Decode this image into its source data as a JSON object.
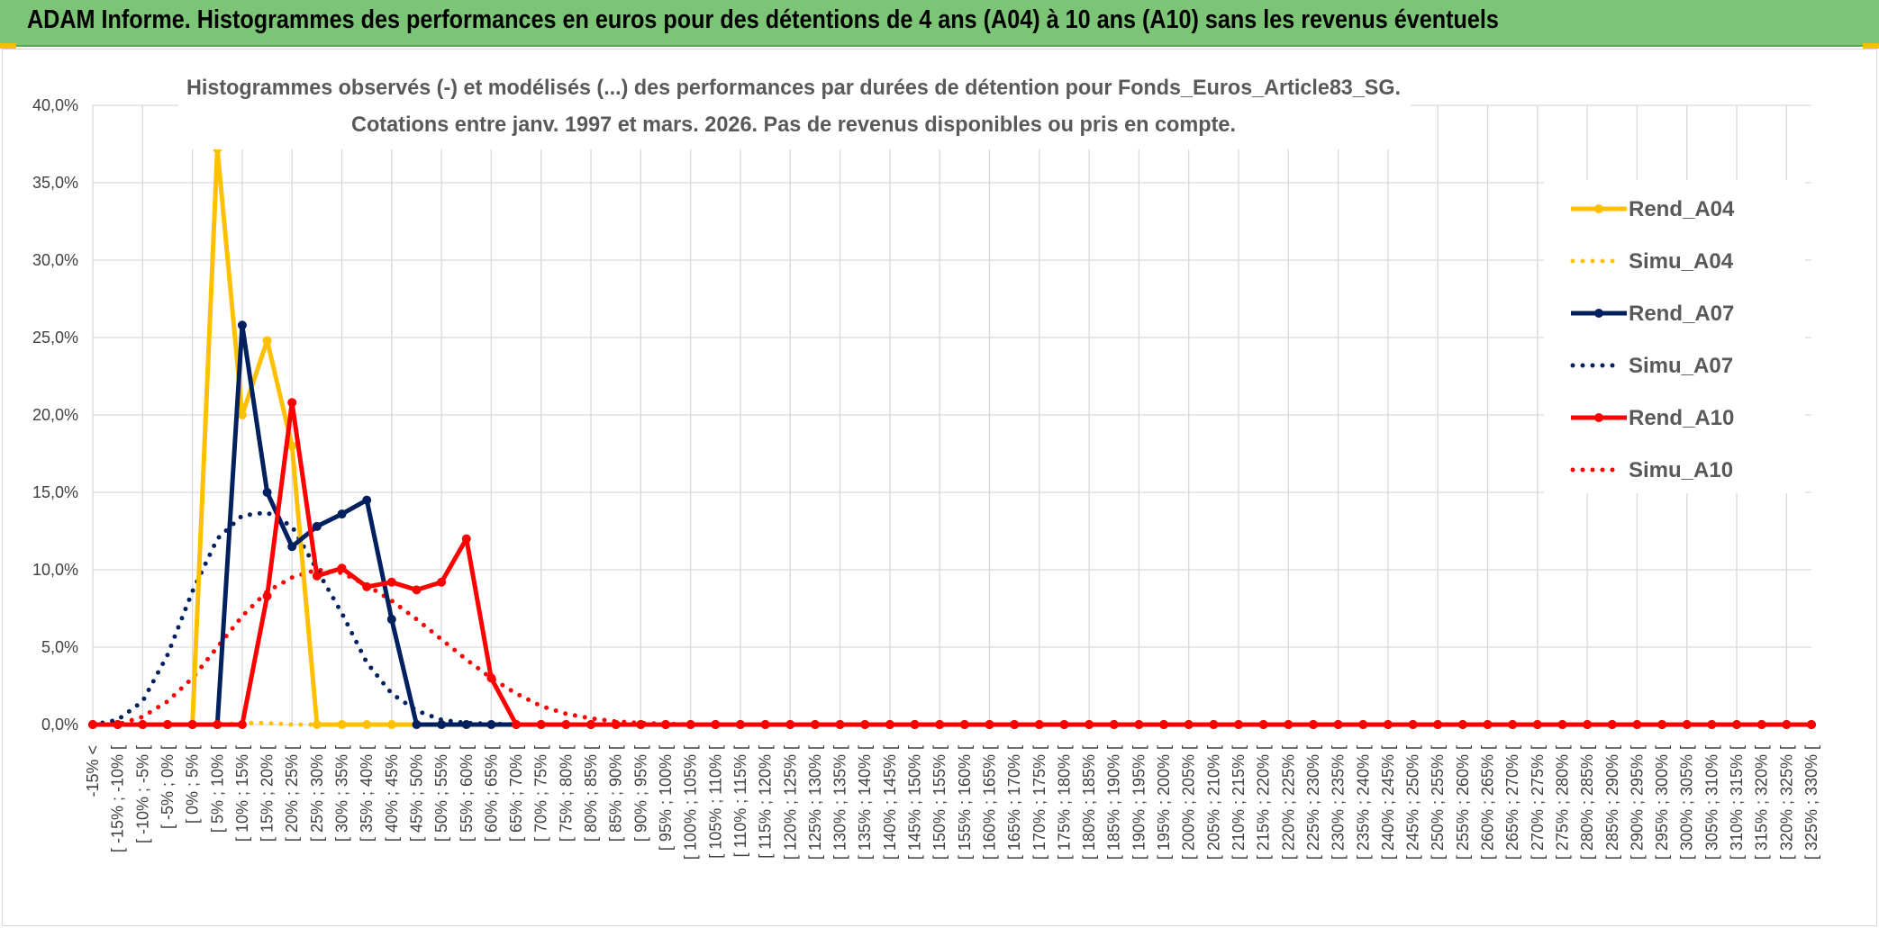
{
  "header": {
    "title": "ADAM Informe. Histogrammes des performances en euros pour des détentions de 4 ans (A04) à 10 ans (A10) sans les revenus éventuels"
  },
  "colors": {
    "banner": "#7cc576",
    "A04": "#ffc000",
    "A07": "#002060",
    "A10": "#ff0000",
    "grid": "#d9d9d9"
  },
  "chart_data": {
    "type": "line",
    "title": "Histogrammes observés (-) et modélisés (...) des performances par durées de détention pour Fonds_Euros_Article83_SG.",
    "subtitle": "Cotations entre janv. 1997 et mars. 2026. Pas de revenus disponibles ou pris en compte.",
    "xlabel": "",
    "ylabel": "",
    "ylim": [
      0,
      40
    ],
    "y_ticks": [
      "0,0%",
      "5,0%",
      "10,0%",
      "15,0%",
      "20,0%",
      "25,0%",
      "30,0%",
      "35,0%",
      "40,0%"
    ],
    "grid": true,
    "legend_position": "right",
    "categories": [
      "-15% <",
      "[ -15% ; -10% [",
      "[ -10% ; -5% [",
      "[ -5% ; 0% [",
      "[ 0% ; 5% [",
      "[ 5% ; 10% [",
      "[ 10% ; 15% [",
      "[ 15% ; 20% [",
      "[ 20% ; 25% [",
      "[ 25% ; 30% [",
      "[ 30% ; 35% [",
      "[ 35% ; 40% [",
      "[ 40% ; 45% [",
      "[ 45% ; 50% [",
      "[ 50% ; 55% [",
      "[ 55% ; 60% [",
      "[ 60% ; 65% [",
      "[ 65% ; 70% [",
      "[ 70% ; 75% [",
      "[ 75% ; 80% [",
      "[ 80% ; 85% [",
      "[ 85% ; 90% [",
      "[ 90% ; 95% [",
      "[ 95% ; 100% [",
      "[ 100% ; 105% [",
      "[ 105% ; 110% [",
      "[ 110% ; 115% [",
      "[ 115% ; 120% [",
      "[ 120% ; 125% [",
      "[ 125% ; 130% [",
      "[ 130% ; 135% [",
      "[ 135% ; 140% [",
      "[ 140% ; 145% [",
      "[ 145% ; 150% [",
      "[ 150% ; 155% [",
      "[ 155% ; 160% [",
      "[ 160% ; 165% [",
      "[ 165% ; 170% [",
      "[ 170% ; 175% [",
      "[ 175% ; 180% [",
      "[ 180% ; 185% [",
      "[ 185% ; 190% [",
      "[ 190% ; 195% [",
      "[ 195% ; 200% [",
      "[ 200% ; 205% [",
      "[ 205% ; 210% [",
      "[ 210% ; 215% [",
      "[ 215% ; 220% [",
      "[ 220% ; 225% [",
      "[ 225% ; 230% [",
      "[ 230% ; 235% [",
      "[ 235% ; 240% [",
      "[ 240% ; 245% [",
      "[ 245% ; 250% [",
      "[ 250% ; 255% [",
      "[ 255% ; 260% [",
      "[ 260% ; 265% [",
      "[ 265% ; 270% [",
      "[ 270% ; 275% [",
      "[ 275% ; 280% [",
      "[ 280% ; 285% [",
      "[ 285% ; 290% [",
      "[ 290% ; 295% [",
      "[ 295% ; 300% [",
      "[ 300% ; 305% [",
      "[ 305% ; 310% [",
      "[ 310% ; 315% [",
      "[ 315% ; 320% [",
      "[ 320% ; 325% [",
      "[ 325% ; 330% ["
    ],
    "series": [
      {
        "name": "Rend_A04",
        "style": "solid",
        "color": "#ffc000",
        "values": [
          0,
          0,
          0,
          0,
          0,
          37.2,
          20.0,
          24.8,
          18.0,
          0,
          0,
          0,
          0,
          0,
          0,
          0,
          0,
          0,
          0,
          0,
          0,
          0,
          0,
          0,
          0,
          0,
          0,
          0,
          0,
          0,
          0,
          0,
          0,
          0,
          0,
          0,
          0,
          0,
          0,
          0,
          0,
          0,
          0,
          0,
          0,
          0,
          0,
          0,
          0,
          0,
          0,
          0,
          0,
          0,
          0,
          0,
          0,
          0,
          0,
          0,
          0,
          0,
          0,
          0,
          0,
          0,
          0,
          0,
          0,
          0
        ]
      },
      {
        "name": "Simu_A04",
        "style": "dotted",
        "color": "#ffc000",
        "values": [
          0,
          0,
          0,
          0,
          0,
          0,
          0.1,
          0.1,
          0,
          0,
          0,
          0,
          0,
          0,
          0,
          0,
          0,
          0,
          0,
          0,
          0,
          0,
          0,
          0,
          0,
          0,
          0,
          0,
          0,
          0,
          0,
          0,
          0,
          0,
          0,
          0,
          0,
          0,
          0,
          0,
          0,
          0,
          0,
          0,
          0,
          0,
          0,
          0,
          0,
          0,
          0,
          0,
          0,
          0,
          0,
          0,
          0,
          0,
          0,
          0,
          0,
          0,
          0,
          0,
          0,
          0,
          0,
          0,
          0,
          0
        ]
      },
      {
        "name": "Rend_A07",
        "style": "solid",
        "color": "#002060",
        "values": [
          0,
          0,
          0,
          0,
          0,
          0,
          25.8,
          15.0,
          11.5,
          12.8,
          13.6,
          14.5,
          6.8,
          0,
          0,
          0,
          0,
          0,
          0,
          0,
          0,
          0,
          0,
          0,
          0,
          0,
          0,
          0,
          0,
          0,
          0,
          0,
          0,
          0,
          0,
          0,
          0,
          0,
          0,
          0,
          0,
          0,
          0,
          0,
          0,
          0,
          0,
          0,
          0,
          0,
          0,
          0,
          0,
          0,
          0,
          0,
          0,
          0,
          0,
          0,
          0,
          0,
          0,
          0,
          0,
          0,
          0,
          0,
          0,
          0
        ]
      },
      {
        "name": "Simu_A07",
        "style": "dotted",
        "color": "#002060",
        "values": [
          0,
          0.3,
          1.5,
          4.5,
          8.6,
          12.0,
          13.5,
          13.7,
          12.8,
          10.0,
          7.2,
          4.0,
          2.0,
          0.9,
          0.3,
          0.1,
          0.05,
          0,
          0,
          0,
          0,
          0,
          0,
          0,
          0,
          0,
          0,
          0,
          0,
          0,
          0,
          0,
          0,
          0,
          0,
          0,
          0,
          0,
          0,
          0,
          0,
          0,
          0,
          0,
          0,
          0,
          0,
          0,
          0,
          0,
          0,
          0,
          0,
          0,
          0,
          0,
          0,
          0,
          0,
          0,
          0,
          0,
          0,
          0,
          0,
          0,
          0,
          0,
          0,
          0
        ]
      },
      {
        "name": "Rend_A10",
        "style": "solid",
        "color": "#ff0000",
        "values": [
          0,
          0,
          0,
          0,
          0,
          0,
          0,
          8.3,
          20.8,
          9.6,
          10.1,
          8.9,
          9.2,
          8.7,
          9.2,
          12.0,
          3.0,
          0,
          0,
          0,
          0,
          0,
          0,
          0,
          0,
          0,
          0,
          0,
          0,
          0,
          0,
          0,
          0,
          0,
          0,
          0,
          0,
          0,
          0,
          0,
          0,
          0,
          0,
          0,
          0,
          0,
          0,
          0,
          0,
          0,
          0,
          0,
          0,
          0,
          0,
          0,
          0,
          0,
          0,
          0,
          0,
          0,
          0,
          0,
          0,
          0,
          0,
          0,
          0,
          0
        ]
      },
      {
        "name": "Simu_A10",
        "style": "dotted",
        "color": "#ff0000",
        "values": [
          0,
          0,
          0.5,
          1.5,
          3.0,
          5.0,
          7.0,
          8.6,
          9.5,
          10.0,
          9.8,
          9.0,
          8.0,
          6.8,
          5.5,
          4.2,
          3.0,
          2.0,
          1.2,
          0.7,
          0.4,
          0.2,
          0.1,
          0.05,
          0,
          0,
          0,
          0,
          0,
          0,
          0,
          0,
          0,
          0,
          0,
          0,
          0,
          0,
          0,
          0,
          0,
          0,
          0,
          0,
          0,
          0,
          0,
          0,
          0,
          0,
          0,
          0,
          0,
          0,
          0,
          0,
          0,
          0,
          0,
          0,
          0,
          0,
          0,
          0,
          0,
          0,
          0,
          0,
          0,
          0
        ]
      }
    ]
  }
}
